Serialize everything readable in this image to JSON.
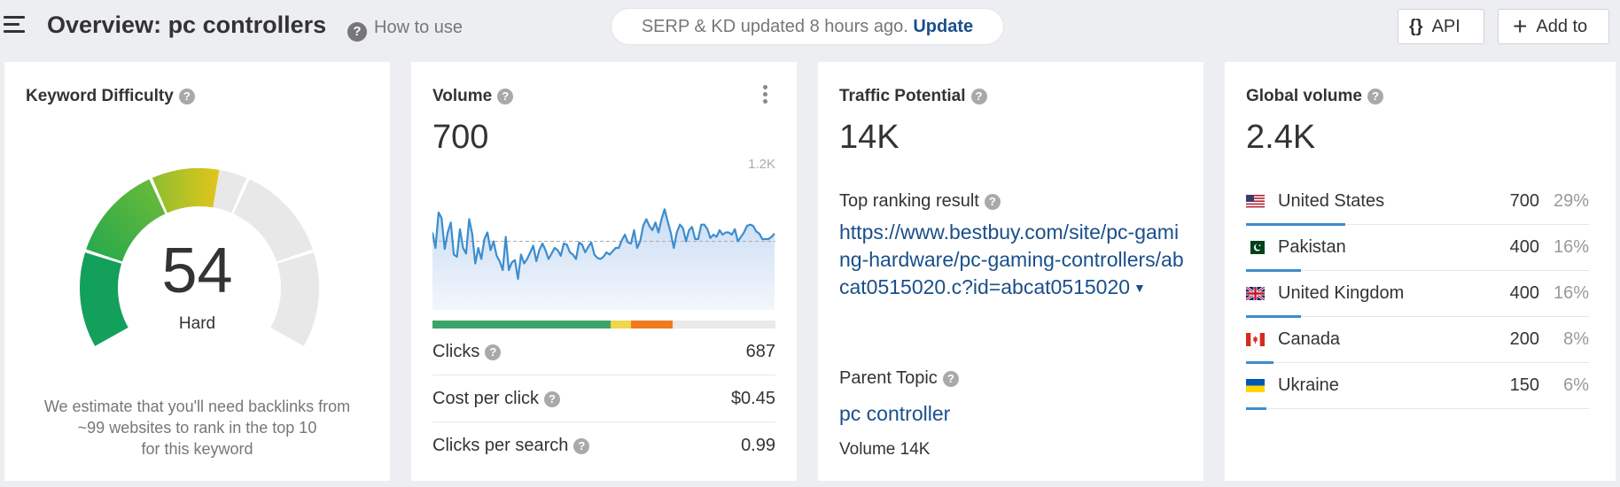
{
  "header": {
    "title": "Overview: pc controllers",
    "how_to_use": "How to use",
    "serp_status": "SERP & KD updated 8 hours ago.",
    "update_link": "Update",
    "api_label": "API",
    "add_label": "Add to"
  },
  "keyword_difficulty": {
    "title": "Keyword Difficulty",
    "score": "54",
    "score_value": 54,
    "label": "Hard",
    "description_line1": "We estimate that you'll need backlinks from",
    "description_line2": "~99 websites to rank in the top 10",
    "description_line3": "for this keyword"
  },
  "volume": {
    "title": "Volume",
    "value": "700",
    "axis_max": "1.2K",
    "click_distribution": {
      "organic": 0.52,
      "paid_yellow": 0.06,
      "paid_orange": 0.12,
      "no_click": 0.3
    },
    "colors": {
      "organic": "#3aa56a",
      "paid_yellow": "#f1d54a",
      "paid_orange": "#f07b1f",
      "no_click": "#e9e9e9",
      "line": "#3c8dce"
    },
    "metrics": [
      {
        "label": "Clicks",
        "value": "687"
      },
      {
        "label": "Cost per click",
        "value": "$0.45"
      },
      {
        "label": "Clicks per search",
        "value": "0.99"
      }
    ]
  },
  "chart_data": {
    "type": "line",
    "title": "",
    "ylim": [
      0,
      1200
    ],
    "y_tick_labels": [
      "1.2K"
    ],
    "series": [
      {
        "values": [
          700,
          560,
          880,
          830,
          550,
          700,
          790,
          500,
          480,
          730,
          560,
          510,
          820,
          690,
          420,
          560,
          460,
          640,
          700,
          540,
          620,
          490,
          440,
          360,
          660,
          360,
          430,
          450,
          280,
          500,
          420,
          460,
          520,
          580,
          440,
          540,
          600,
          540,
          460,
          510,
          560,
          540,
          490,
          600,
          590,
          520,
          500,
          460,
          610,
          590,
          520,
          570,
          610,
          500,
          470,
          460,
          480,
          520,
          500,
          530,
          560,
          560,
          630,
          680,
          610,
          600,
          720,
          560,
          620,
          760,
          820,
          760,
          720,
          790,
          700,
          820,
          910,
          800,
          700,
          560,
          700,
          770,
          740,
          620,
          720,
          750,
          640,
          640,
          770,
          770,
          730,
          650,
          680,
          660,
          720,
          680,
          700,
          700,
          680,
          730,
          620,
          660,
          700,
          760,
          770,
          760,
          710,
          690,
          640,
          640,
          640,
          660,
          690
        ]
      }
    ],
    "average": 620
  },
  "traffic_potential": {
    "title": "Traffic Potential",
    "value": "14K",
    "top_result_label": "Top ranking result",
    "top_result_url": "https://www.bestbuy.com/site/pc-gaming-hardware/pc-gaming-controllers/abcat0515020.c?id=abcat0515020",
    "parent_topic_label": "Parent Topic",
    "parent_topic": "pc controller",
    "parent_volume": "Volume 14K"
  },
  "global_volume": {
    "title": "Global volume",
    "value": "2.4K",
    "countries": [
      {
        "name": "United States",
        "volume": "700",
        "percent": "29%",
        "share": 0.29,
        "flag": "us-flag-icon"
      },
      {
        "name": "Pakistan",
        "volume": "400",
        "percent": "16%",
        "share": 0.16,
        "flag": "pk-flag-icon"
      },
      {
        "name": "United Kingdom",
        "volume": "400",
        "percent": "16%",
        "share": 0.16,
        "flag": "gb-flag-icon"
      },
      {
        "name": "Canada",
        "volume": "200",
        "percent": "8%",
        "share": 0.08,
        "flag": "ca-flag-icon"
      },
      {
        "name": "Ukraine",
        "volume": "150",
        "percent": "6%",
        "share": 0.06,
        "flag": "ua-flag-icon"
      }
    ]
  }
}
